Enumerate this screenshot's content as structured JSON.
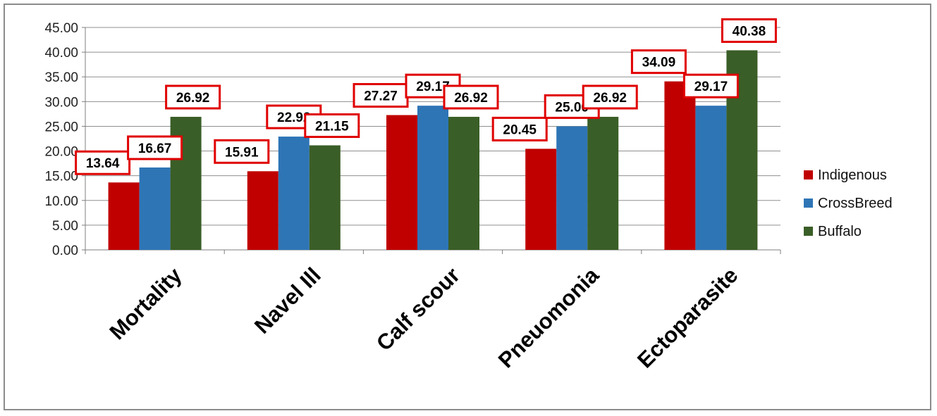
{
  "chart_data": {
    "type": "bar",
    "categories": [
      "Mortality",
      "Navel Ill",
      "Calf scour",
      "Pneuomonia",
      "Ectoparasite"
    ],
    "series": [
      {
        "name": "Indigenous",
        "color": "#c00000",
        "values": [
          13.64,
          15.91,
          27.27,
          20.45,
          34.09
        ]
      },
      {
        "name": "CrossBreed",
        "color": "#2e75b6",
        "values": [
          16.67,
          22.92,
          29.17,
          25.0,
          29.17
        ]
      },
      {
        "name": "Buffalo",
        "color": "#3a5e27",
        "values": [
          26.92,
          21.15,
          26.92,
          26.92,
          40.38
        ]
      }
    ],
    "ylim": [
      0,
      45
    ],
    "yticks": [
      "0.00",
      "5.00",
      "10.00",
      "15.00",
      "20.00",
      "25.00",
      "30.00",
      "35.00",
      "40.00",
      "45.00"
    ],
    "grid": true,
    "legend_position": "right",
    "data_label_box_color": "#e00000",
    "data_labels": [
      [
        "13.64",
        "15.91",
        "27.27",
        "20.45",
        "34.09"
      ],
      [
        "16.67",
        "22.92",
        "29.17",
        "25.00",
        "29.17"
      ],
      [
        "26.92",
        "21.15",
        "26.92",
        "26.92",
        "40.38"
      ]
    ]
  }
}
